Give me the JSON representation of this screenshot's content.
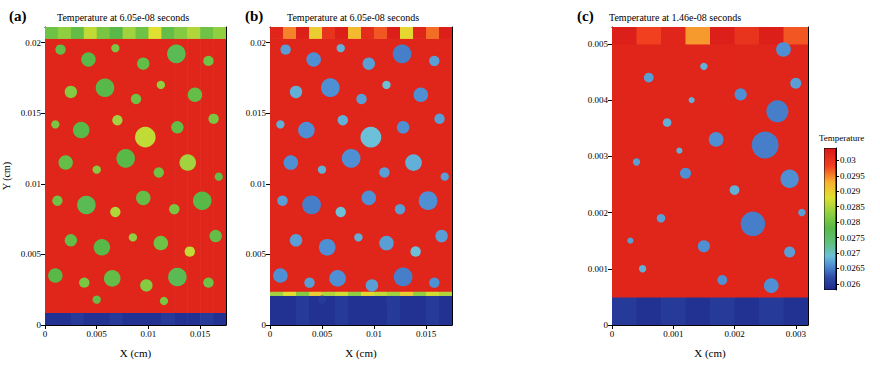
{
  "chart_data": [
    {
      "type": "heatmap",
      "letter": "(a)",
      "title": "Temperature at 6.05e-08 seconds",
      "x_label": "X (cm)",
      "y_label": "Y (cm)",
      "xlim": [
        0,
        0.0175
      ],
      "ylim": [
        0,
        0.0211
      ],
      "xticks": [
        0,
        0.005,
        0.01,
        0.015
      ],
      "yticks": [
        0,
        0.005,
        0.01,
        0.015,
        0.02
      ],
      "cells": {
        "x_edges": [
          0,
          0.00125,
          0.0025,
          0.00375,
          0.005,
          0.00625,
          0.0075,
          0.00875,
          0.01,
          0.01125,
          0.0125,
          0.01375,
          0.015,
          0.01625,
          0.0175
        ],
        "y_edges": [
          0,
          0.0009,
          0.0203,
          0.0211
        ],
        "values": [
          [
            0.0259,
            0.0259,
            0.026,
            0.0259,
            0.0259,
            0.026,
            0.0259,
            0.0259,
            0.0259,
            0.026,
            0.0259,
            0.0259,
            0.026,
            0.0259
          ],
          [
            0.0302,
            0.0302,
            0.0302,
            0.0302,
            0.0302,
            0.0302,
            0.0302,
            0.0302,
            0.0302,
            0.0302,
            0.0302,
            0.0302,
            0.0302,
            0.0302
          ],
          [
            0.028,
            0.0283,
            0.0279,
            0.0286,
            0.0281,
            0.0278,
            0.0284,
            0.028,
            0.0288,
            0.0279,
            0.0282,
            0.0285,
            0.028,
            0.0283
          ]
        ]
      },
      "particles": [
        [
          0.0015,
          0.0195,
          0.0005,
          0.0279
        ],
        [
          0.0042,
          0.0188,
          0.0007,
          0.0278
        ],
        [
          0.0068,
          0.0196,
          0.0004,
          0.0281
        ],
        [
          0.0095,
          0.0185,
          0.0006,
          0.0279
        ],
        [
          0.0127,
          0.0192,
          0.0009,
          0.0277
        ],
        [
          0.0158,
          0.0187,
          0.0005,
          0.028
        ],
        [
          0.0025,
          0.0165,
          0.0006,
          0.0282
        ],
        [
          0.0058,
          0.0168,
          0.0009,
          0.0278
        ],
        [
          0.0088,
          0.016,
          0.0005,
          0.028
        ],
        [
          0.0112,
          0.017,
          0.0004,
          0.0283
        ],
        [
          0.0145,
          0.0163,
          0.0007,
          0.0279
        ],
        [
          0.001,
          0.0142,
          0.0004,
          0.0281
        ],
        [
          0.0035,
          0.0138,
          0.0008,
          0.0278
        ],
        [
          0.007,
          0.0145,
          0.0005,
          0.0284
        ],
        [
          0.0097,
          0.0133,
          0.001,
          0.0286
        ],
        [
          0.0128,
          0.014,
          0.0006,
          0.0279
        ],
        [
          0.0163,
          0.0146,
          0.0005,
          0.0281
        ],
        [
          0.002,
          0.0115,
          0.0007,
          0.0279
        ],
        [
          0.005,
          0.011,
          0.0004,
          0.0282
        ],
        [
          0.0078,
          0.0118,
          0.0009,
          0.0278
        ],
        [
          0.011,
          0.0108,
          0.0005,
          0.028
        ],
        [
          0.0138,
          0.0115,
          0.0008,
          0.0284
        ],
        [
          0.0168,
          0.0105,
          0.0004,
          0.0279
        ],
        [
          0.0012,
          0.0088,
          0.0005,
          0.028
        ],
        [
          0.004,
          0.0085,
          0.0009,
          0.0277
        ],
        [
          0.0068,
          0.008,
          0.0005,
          0.0285
        ],
        [
          0.0095,
          0.009,
          0.0007,
          0.0279
        ],
        [
          0.0125,
          0.0082,
          0.0005,
          0.0281
        ],
        [
          0.0152,
          0.0088,
          0.0009,
          0.0278
        ],
        [
          0.0025,
          0.006,
          0.0006,
          0.0279
        ],
        [
          0.0055,
          0.0055,
          0.0008,
          0.0278
        ],
        [
          0.0085,
          0.0062,
          0.0004,
          0.0283
        ],
        [
          0.0112,
          0.0058,
          0.0007,
          0.028
        ],
        [
          0.014,
          0.0052,
          0.0005,
          0.0286
        ],
        [
          0.0165,
          0.0063,
          0.0006,
          0.0279
        ],
        [
          0.001,
          0.0035,
          0.0007,
          0.0278
        ],
        [
          0.0038,
          0.003,
          0.0005,
          0.0281
        ],
        [
          0.0065,
          0.0033,
          0.0008,
          0.0279
        ],
        [
          0.0098,
          0.0028,
          0.0006,
          0.0282
        ],
        [
          0.0128,
          0.0034,
          0.0009,
          0.0277
        ],
        [
          0.0158,
          0.003,
          0.0005,
          0.028
        ],
        [
          0.005,
          0.0018,
          0.0004,
          0.0279
        ],
        [
          0.0115,
          0.0017,
          0.0004,
          0.0281
        ]
      ]
    },
    {
      "type": "heatmap",
      "letter": "(b)",
      "title": "Temperature at 6.05e-08 seconds",
      "x_label": "X (cm)",
      "xlim": [
        0,
        0.0175
      ],
      "ylim": [
        0,
        0.0211
      ],
      "xticks": [
        0,
        0.005,
        0.01,
        0.015
      ],
      "yticks": [
        0,
        0.005,
        0.01,
        0.015,
        0.02
      ],
      "cells": {
        "x_edges": [
          0,
          0.00125,
          0.0025,
          0.00375,
          0.005,
          0.00625,
          0.0075,
          0.00875,
          0.01,
          0.01125,
          0.0125,
          0.01375,
          0.015,
          0.01625,
          0.0175
        ],
        "y_edges": [
          0,
          0.0021,
          0.0024,
          0.0203,
          0.0211
        ],
        "values": [
          [
            0.0259,
            0.0259,
            0.026,
            0.0259,
            0.0259,
            0.026,
            0.0259,
            0.0259,
            0.0259,
            0.026,
            0.0259,
            0.0259,
            0.026,
            0.0259
          ],
          [
            0.0284,
            0.0288,
            0.0282,
            0.029,
            0.0285,
            0.0287,
            0.0283,
            0.0289,
            0.0286,
            0.0284,
            0.029,
            0.0283,
            0.0287,
            0.0285
          ],
          [
            0.0302,
            0.0302,
            0.0302,
            0.0302,
            0.0302,
            0.0302,
            0.0302,
            0.0302,
            0.0302,
            0.0302,
            0.0302,
            0.0302,
            0.0302,
            0.0302
          ],
          [
            0.0302,
            0.0295,
            0.0303,
            0.029,
            0.03,
            0.0303,
            0.0292,
            0.0301,
            0.0297,
            0.0303,
            0.0289,
            0.0302,
            0.0296,
            0.0303
          ]
        ]
      },
      "particles": [
        [
          0.0015,
          0.0195,
          0.0005,
          0.0267
        ],
        [
          0.0042,
          0.0188,
          0.0007,
          0.0266
        ],
        [
          0.0068,
          0.0196,
          0.0004,
          0.0268
        ],
        [
          0.0095,
          0.0185,
          0.0006,
          0.0267
        ],
        [
          0.0127,
          0.0192,
          0.0009,
          0.0265
        ],
        [
          0.0158,
          0.0187,
          0.0005,
          0.0267
        ],
        [
          0.0025,
          0.0165,
          0.0006,
          0.0268
        ],
        [
          0.0058,
          0.0168,
          0.0009,
          0.0266
        ],
        [
          0.0088,
          0.016,
          0.0005,
          0.0267
        ],
        [
          0.0112,
          0.017,
          0.0004,
          0.0269
        ],
        [
          0.0145,
          0.0163,
          0.0007,
          0.0266
        ],
        [
          0.001,
          0.0142,
          0.0004,
          0.0268
        ],
        [
          0.0035,
          0.0138,
          0.0008,
          0.0266
        ],
        [
          0.007,
          0.0145,
          0.0005,
          0.0268
        ],
        [
          0.0097,
          0.0133,
          0.001,
          0.0269
        ],
        [
          0.0128,
          0.014,
          0.0006,
          0.0266
        ],
        [
          0.0163,
          0.0146,
          0.0005,
          0.0267
        ],
        [
          0.002,
          0.0115,
          0.0007,
          0.0266
        ],
        [
          0.005,
          0.011,
          0.0004,
          0.0268
        ],
        [
          0.0078,
          0.0118,
          0.0009,
          0.0266
        ],
        [
          0.011,
          0.0108,
          0.0005,
          0.0267
        ],
        [
          0.0138,
          0.0115,
          0.0008,
          0.0268
        ],
        [
          0.0168,
          0.0105,
          0.0004,
          0.0267
        ],
        [
          0.0012,
          0.0088,
          0.0005,
          0.0267
        ],
        [
          0.004,
          0.0085,
          0.0009,
          0.0265
        ],
        [
          0.0068,
          0.008,
          0.0005,
          0.0269
        ],
        [
          0.0095,
          0.009,
          0.0007,
          0.0266
        ],
        [
          0.0125,
          0.0082,
          0.0005,
          0.0267
        ],
        [
          0.0152,
          0.0088,
          0.0009,
          0.0266
        ],
        [
          0.0025,
          0.006,
          0.0006,
          0.0267
        ],
        [
          0.0055,
          0.0055,
          0.0008,
          0.0266
        ],
        [
          0.0085,
          0.0062,
          0.0004,
          0.0268
        ],
        [
          0.0112,
          0.0058,
          0.0007,
          0.0267
        ],
        [
          0.014,
          0.0052,
          0.0005,
          0.0269
        ],
        [
          0.0165,
          0.0063,
          0.0006,
          0.0267
        ],
        [
          0.001,
          0.0035,
          0.0007,
          0.0266
        ],
        [
          0.0038,
          0.003,
          0.0005,
          0.0267
        ],
        [
          0.0065,
          0.0033,
          0.0008,
          0.0266
        ],
        [
          0.0098,
          0.0028,
          0.0006,
          0.0267
        ],
        [
          0.0128,
          0.0034,
          0.0009,
          0.0265
        ],
        [
          0.0158,
          0.003,
          0.0005,
          0.0266
        ],
        [
          0.005,
          0.0018,
          0.0004,
          0.026
        ],
        [
          0.0115,
          0.0017,
          0.0004,
          0.026
        ]
      ]
    },
    {
      "type": "heatmap",
      "letter": "(c)",
      "title": "Temperature at 1.46e-08 seconds",
      "x_label": "X (cm)",
      "xlim": [
        0,
        0.0032
      ],
      "ylim": [
        0,
        0.0053
      ],
      "xticks": [
        0,
        0.001,
        0.002,
        0.003
      ],
      "yticks": [
        0,
        0.001,
        0.002,
        0.003,
        0.004,
        0.005
      ],
      "cells": {
        "x_edges": [
          0,
          0.0004,
          0.0008,
          0.0012,
          0.0016,
          0.002,
          0.0024,
          0.0028,
          0.0032
        ],
        "y_edges": [
          0,
          0.0005,
          0.005,
          0.0053
        ],
        "values": [
          [
            0.026,
            0.0259,
            0.026,
            0.0259,
            0.026,
            0.0259,
            0.026,
            0.0259
          ],
          [
            0.0302,
            0.0302,
            0.0302,
            0.0302,
            0.0302,
            0.0302,
            0.0302,
            0.0302
          ],
          [
            0.0303,
            0.0298,
            0.0302,
            0.0294,
            0.0303,
            0.03,
            0.0303,
            0.0297
          ]
        ]
      },
      "particles": [
        [
          0.0028,
          0.0049,
          0.00012,
          0.0266
        ],
        [
          0.0006,
          0.0044,
          8e-05,
          0.0267
        ],
        [
          0.0015,
          0.0046,
          6e-05,
          0.0268
        ],
        [
          0.0027,
          0.0038,
          0.00018,
          0.0265
        ],
        [
          0.0021,
          0.0041,
          0.0001,
          0.0266
        ],
        [
          0.003,
          0.0043,
          9e-05,
          0.0267
        ],
        [
          0.0009,
          0.0036,
          7e-05,
          0.0268
        ],
        [
          0.0017,
          0.0033,
          0.00012,
          0.0266
        ],
        [
          0.0025,
          0.0032,
          0.00022,
          0.0265
        ],
        [
          0.0004,
          0.0029,
          6e-05,
          0.0267
        ],
        [
          0.0012,
          0.0027,
          9e-05,
          0.0266
        ],
        [
          0.002,
          0.0024,
          8e-05,
          0.0268
        ],
        [
          0.0029,
          0.0026,
          0.00015,
          0.0266
        ],
        [
          0.0023,
          0.0018,
          0.0002,
          0.0265
        ],
        [
          0.0008,
          0.0019,
          7e-05,
          0.0267
        ],
        [
          0.0015,
          0.0014,
          0.0001,
          0.0266
        ],
        [
          0.0029,
          0.0013,
          9e-05,
          0.0267
        ],
        [
          0.0005,
          0.001,
          6e-05,
          0.0268
        ],
        [
          0.0018,
          0.0008,
          8e-05,
          0.0266
        ],
        [
          0.0026,
          0.0007,
          0.00012,
          0.0266
        ],
        [
          0.0011,
          0.0031,
          5e-05,
          0.0268
        ],
        [
          0.0031,
          0.002,
          6e-05,
          0.0267
        ],
        [
          0.0003,
          0.0015,
          5e-05,
          0.0267
        ],
        [
          0.0013,
          0.004,
          5e-05,
          0.0268
        ]
      ]
    }
  ],
  "colorbar": {
    "title": "Temperature",
    "range": [
      0.0258,
      0.0304
    ],
    "ticks": [
      0.026,
      0.0265,
      0.027,
      0.0275,
      0.028,
      0.0285,
      0.029,
      0.0295,
      0.03
    ]
  }
}
